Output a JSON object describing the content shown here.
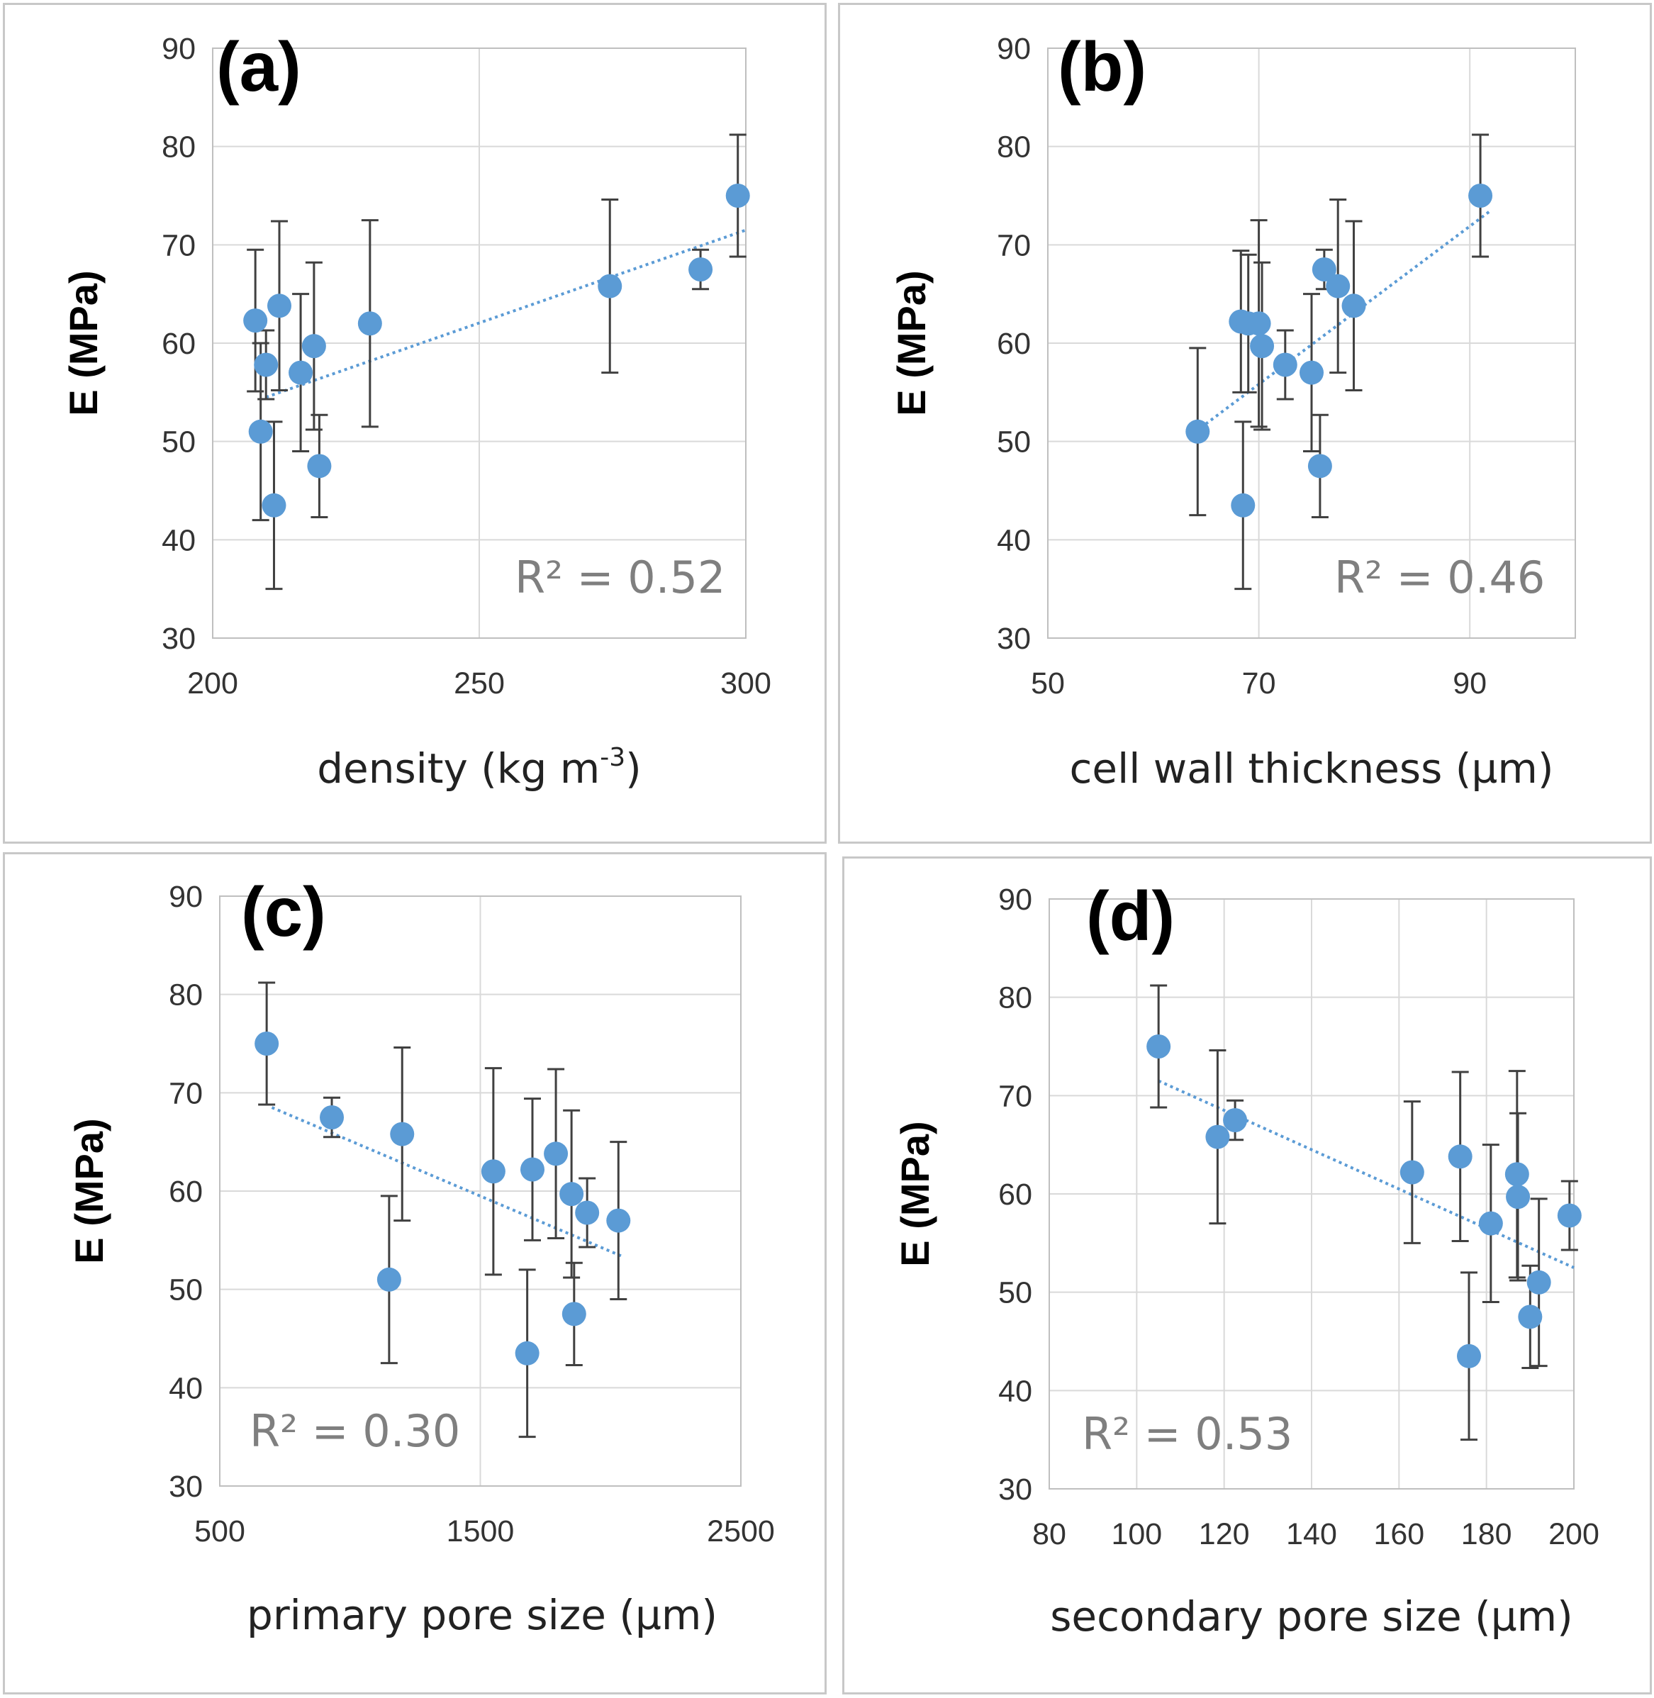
{
  "chart_data": [
    {
      "type": "scatter",
      "panel_label": "(a)",
      "xlabel": "density (kg m",
      "xlabel_sup": "-3",
      "xlabel_close": ")",
      "ylabel": "E (MPa)",
      "xlim": [
        200,
        300
      ],
      "ylim": [
        30,
        90
      ],
      "xticks": [
        200,
        250,
        300
      ],
      "yticks": [
        30,
        40,
        50,
        60,
        70,
        80,
        90
      ],
      "annotation": "R² = 0.52",
      "trendline": [
        [
          210,
          54.5
        ],
        [
          300,
          71.5
        ]
      ],
      "points": [
        {
          "x": 208,
          "y": 62.3,
          "err": 7.2
        },
        {
          "x": 209,
          "y": 51.0,
          "err": 9.0
        },
        {
          "x": 210,
          "y": 57.8,
          "err": 3.5
        },
        {
          "x": 211.5,
          "y": 43.5,
          "err": 8.5
        },
        {
          "x": 212.5,
          "y": 63.8,
          "err": 8.6
        },
        {
          "x": 216.5,
          "y": 57.0,
          "err": 8.0
        },
        {
          "x": 219,
          "y": 59.7,
          "err": 8.5
        },
        {
          "x": 220,
          "y": 47.5,
          "err": 5.2
        },
        {
          "x": 229.5,
          "y": 62.0,
          "err": 10.5
        },
        {
          "x": 274.5,
          "y": 65.8,
          "err": 8.8
        },
        {
          "x": 291.5,
          "y": 67.5,
          "err": 2.0
        },
        {
          "x": 298.5,
          "y": 75.0,
          "err": 6.2
        }
      ]
    },
    {
      "type": "scatter",
      "panel_label": "(b)",
      "xlabel": "cell wall thickness (µm)",
      "ylabel": "E (MPa)",
      "xlim": [
        50,
        100
      ],
      "ylim": [
        30,
        90
      ],
      "xticks": [
        50,
        70,
        90
      ],
      "yticks": [
        30,
        40,
        50,
        60,
        70,
        80,
        90
      ],
      "annotation": "R² = 0.46",
      "trendline": [
        [
          64,
          51.0
        ],
        [
          92,
          73.5
        ]
      ],
      "points": [
        {
          "x": 64.2,
          "y": 51.0,
          "err": 8.5
        },
        {
          "x": 68.3,
          "y": 62.2,
          "err": 7.2
        },
        {
          "x": 68.5,
          "y": 43.5,
          "err": 8.5
        },
        {
          "x": 69.0,
          "y": 62.0,
          "err": 7.0
        },
        {
          "x": 70.0,
          "y": 62.0,
          "err": 10.5
        },
        {
          "x": 70.3,
          "y": 59.7,
          "err": 8.5
        },
        {
          "x": 72.5,
          "y": 57.8,
          "err": 3.5
        },
        {
          "x": 75.0,
          "y": 57.0,
          "err": 8.0
        },
        {
          "x": 75.8,
          "y": 47.5,
          "err": 5.2
        },
        {
          "x": 76.2,
          "y": 67.5,
          "err": 2.0
        },
        {
          "x": 77.5,
          "y": 65.8,
          "err": 8.8
        },
        {
          "x": 79.0,
          "y": 63.8,
          "err": 8.6
        },
        {
          "x": 91.0,
          "y": 75.0,
          "err": 6.2
        }
      ]
    },
    {
      "type": "scatter",
      "panel_label": "(c)",
      "xlabel": "primary pore size (µm)",
      "ylabel": "E (MPa)",
      "xlim": [
        500,
        2500
      ],
      "ylim": [
        30,
        90
      ],
      "xticks": [
        500,
        1500,
        2500
      ],
      "yticks": [
        30,
        40,
        50,
        60,
        70,
        80,
        90
      ],
      "annotation": "R² = 0.30",
      "trendline": [
        [
          700,
          68.5
        ],
        [
          2050,
          53.3
        ]
      ],
      "points": [
        {
          "x": 680,
          "y": 75.0,
          "err": 6.2
        },
        {
          "x": 930,
          "y": 67.5,
          "err": 2.0
        },
        {
          "x": 1150,
          "y": 51.0,
          "err": 8.5
        },
        {
          "x": 1200,
          "y": 65.8,
          "err": 8.8
        },
        {
          "x": 1550,
          "y": 62.0,
          "err": 10.5
        },
        {
          "x": 1680,
          "y": 43.5,
          "err": 8.5
        },
        {
          "x": 1700,
          "y": 62.2,
          "err": 7.2
        },
        {
          "x": 1790,
          "y": 63.8,
          "err": 8.6
        },
        {
          "x": 1850,
          "y": 59.7,
          "err": 8.5
        },
        {
          "x": 1860,
          "y": 47.5,
          "err": 5.2
        },
        {
          "x": 1910,
          "y": 57.8,
          "err": 3.5
        },
        {
          "x": 2030,
          "y": 57.0,
          "err": 8.0
        }
      ]
    },
    {
      "type": "scatter",
      "panel_label": "(d)",
      "xlabel": "secondary pore size (µm)",
      "ylabel": "E (MPa)",
      "xlim": [
        80,
        200
      ],
      "ylim": [
        30,
        90
      ],
      "xticks": [
        80,
        100,
        120,
        140,
        160,
        180,
        200
      ],
      "yticks": [
        30,
        40,
        50,
        60,
        70,
        80,
        90
      ],
      "annotation": "R² = 0.53",
      "trendline": [
        [
          105,
          71.5
        ],
        [
          200,
          52.5
        ]
      ],
      "points": [
        {
          "x": 105,
          "y": 75.0,
          "err": 6.2
        },
        {
          "x": 118.5,
          "y": 65.8,
          "err": 8.8
        },
        {
          "x": 122.5,
          "y": 67.5,
          "err": 2.0
        },
        {
          "x": 163,
          "y": 62.2,
          "err": 7.2
        },
        {
          "x": 174,
          "y": 63.8,
          "err": 8.6
        },
        {
          "x": 176,
          "y": 43.5,
          "err": 8.5
        },
        {
          "x": 181,
          "y": 57.0,
          "err": 8.0
        },
        {
          "x": 187,
          "y": 62.0,
          "err": 10.5
        },
        {
          "x": 187.2,
          "y": 59.7,
          "err": 8.5
        },
        {
          "x": 190,
          "y": 47.5,
          "err": 5.2
        },
        {
          "x": 192,
          "y": 51.0,
          "err": 8.5
        },
        {
          "x": 199,
          "y": 57.8,
          "err": 3.5
        }
      ]
    }
  ],
  "colors": {
    "marker": "#5b9bd5",
    "trend": "#5b9bd5",
    "error_bar": "#404040",
    "grid": "#d9d9d9",
    "axis": "#bfbfbf"
  }
}
